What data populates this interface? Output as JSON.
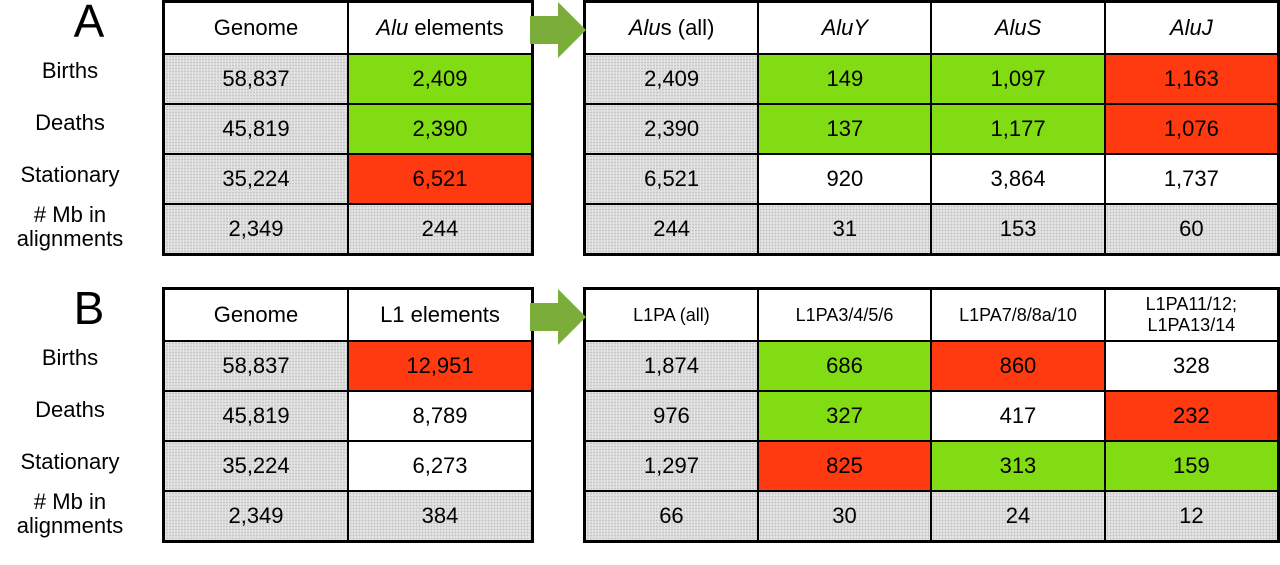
{
  "panels": [
    {
      "label": "A",
      "row_labels": [
        "Births",
        "Deaths",
        "Stationary",
        "# Mb in alignments"
      ],
      "left": {
        "headers": [
          [
            {
              "text": "Genome"
            }
          ],
          [
            {
              "text": "Alu",
              "italic": true
            },
            {
              "text": " elements"
            }
          ]
        ],
        "rows": [
          [
            "58,837",
            "2,409"
          ],
          [
            "45,819",
            "2,390"
          ],
          [
            "35,224",
            "6,521"
          ],
          [
            "2,349",
            "244"
          ]
        ],
        "fills": [
          [
            "#d9d9d9",
            "#82dc14"
          ],
          [
            "#d9d9d9",
            "#82dc14"
          ],
          [
            "#d9d9d9",
            "#ff3a10"
          ],
          [
            "#d9d9d9",
            "#d9d9d9"
          ]
        ]
      },
      "right": {
        "headers": [
          [
            {
              "text": "Alu",
              "italic": true
            },
            {
              "text": "s (all)"
            }
          ],
          [
            {
              "text": "AluY",
              "italic": true
            }
          ],
          [
            {
              "text": "AluS",
              "italic": true
            }
          ],
          [
            {
              "text": "AluJ",
              "italic": true
            }
          ]
        ],
        "rows": [
          [
            "2,409",
            "149",
            "1,097",
            "1,163"
          ],
          [
            "2,390",
            "137",
            "1,177",
            "1,076"
          ],
          [
            "6,521",
            "920",
            "3,864",
            "1,737"
          ],
          [
            "244",
            "31",
            "153",
            "60"
          ]
        ],
        "fills": [
          [
            "#d9d9d9",
            "#82dc14",
            "#82dc14",
            "#ff3a10"
          ],
          [
            "#d9d9d9",
            "#82dc14",
            "#82dc14",
            "#ff3a10"
          ],
          [
            "#d9d9d9",
            "#ffffff",
            "#ffffff",
            "#ffffff"
          ],
          [
            "#d9d9d9",
            "#d9d9d9",
            "#d9d9d9",
            "#d9d9d9"
          ]
        ]
      }
    },
    {
      "label": "B",
      "row_labels": [
        "Births",
        "Deaths",
        "Stationary",
        "# Mb in alignments"
      ],
      "left": {
        "headers": [
          [
            {
              "text": "Genome"
            }
          ],
          [
            {
              "text": "L1 elements"
            }
          ]
        ],
        "rows": [
          [
            "58,837",
            "12,951"
          ],
          [
            "45,819",
            "8,789"
          ],
          [
            "35,224",
            "6,273"
          ],
          [
            "2,349",
            "384"
          ]
        ],
        "fills": [
          [
            "#d9d9d9",
            "#ff3a10"
          ],
          [
            "#d9d9d9",
            "#ffffff"
          ],
          [
            "#d9d9d9",
            "#ffffff"
          ],
          [
            "#d9d9d9",
            "#d9d9d9"
          ]
        ]
      },
      "right": {
        "headers": [
          [
            {
              "text": "L1PA (all)"
            }
          ],
          [
            {
              "text": "L1PA3/4/5/6"
            }
          ],
          [
            {
              "text": "L1PA7/8/8a/10"
            }
          ],
          [
            {
              "text": "L1PA11/12; L1PA13/14"
            }
          ]
        ],
        "rows": [
          [
            "1,874",
            "686",
            "860",
            "328"
          ],
          [
            "976",
            "327",
            "417",
            "232"
          ],
          [
            "1,297",
            "825",
            "313",
            "159"
          ],
          [
            "66",
            "30",
            "24",
            "12"
          ]
        ],
        "fills": [
          [
            "#d9d9d9",
            "#82dc14",
            "#ff3a10",
            "#ffffff"
          ],
          [
            "#d9d9d9",
            "#82dc14",
            "#ffffff",
            "#ff3a10"
          ],
          [
            "#d9d9d9",
            "#ff3a10",
            "#82dc14",
            "#82dc14"
          ],
          [
            "#d9d9d9",
            "#d9d9d9",
            "#d9d9d9",
            "#d9d9d9"
          ]
        ]
      }
    }
  ]
}
